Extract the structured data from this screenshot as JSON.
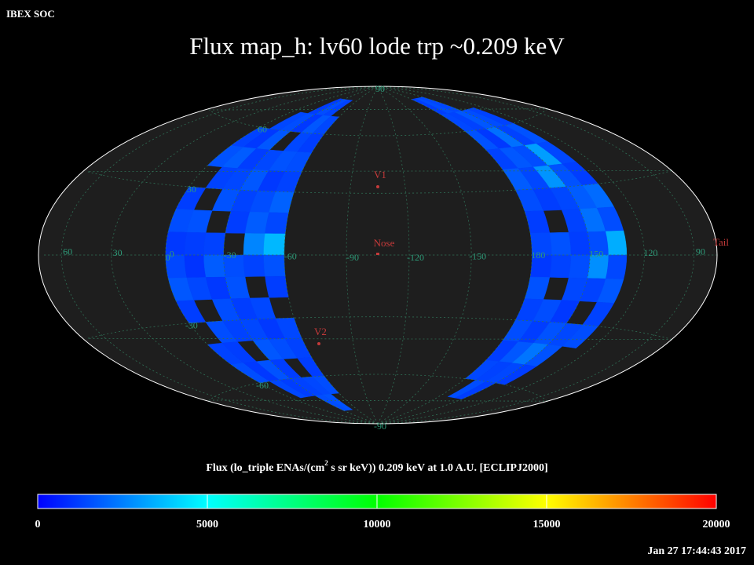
{
  "header": {
    "label": "IBEX SOC",
    "title": "Flux   map_h: lv60 lode trp ~0.209 keV",
    "timestamp": "Jan 27 17:44:43 2017"
  },
  "map": {
    "lat_labels": [
      90,
      60,
      30,
      0,
      -30,
      -60,
      -90
    ],
    "lon_labels": [
      60,
      30,
      0,
      -30,
      -60,
      -90,
      -120,
      -150,
      180,
      150,
      120,
      90
    ],
    "markers": [
      "V1",
      "Nose",
      "V2",
      "Tail"
    ],
    "flux_left": [
      [
        null,
        null,
        null,
        1300,
        1600,
        null,
        1200,
        1500,
        1100,
        1400,
        1700,
        1200,
        null,
        1300,
        1500,
        null,
        null,
        null
      ],
      [
        null,
        null,
        1400,
        1100,
        1800,
        1300,
        null,
        1600,
        1200,
        1000,
        1400,
        null,
        1500,
        1200,
        1100,
        1400,
        null,
        null
      ],
      [
        null,
        1200,
        1500,
        1700,
        1200,
        1400,
        1600,
        null,
        1300,
        1800,
        1100,
        1500,
        1300,
        null,
        1600,
        1200,
        null,
        null
      ],
      [
        null,
        1500,
        1100,
        null,
        1400,
        1700,
        1300,
        1200,
        null,
        1500,
        1600,
        1200,
        1400,
        1700,
        1200,
        1300,
        1500,
        null
      ],
      [
        null,
        1300,
        1700,
        1400,
        1600,
        1100,
        1500,
        1800,
        2600,
        1300,
        null,
        1400,
        1100,
        1500,
        null,
        1400,
        1600,
        null
      ],
      [
        null,
        null,
        1400,
        1200,
        1500,
        1300,
        1900,
        1400,
        3600,
        1600,
        1200,
        null,
        1400,
        1300,
        1200,
        1500,
        null,
        null
      ]
    ],
    "flux_right": [
      [
        null,
        1200,
        1400,
        1600,
        1300,
        1800,
        1500,
        1200,
        1400,
        1100,
        1600,
        1300,
        1500,
        1200,
        1400,
        null,
        null,
        null
      ],
      [
        null,
        1500,
        1300,
        1100,
        1700,
        1400,
        1200,
        null,
        1600,
        1300,
        null,
        1500,
        1200,
        1700,
        1300,
        1500,
        null,
        null
      ],
      [
        null,
        1400,
        1700,
        2200,
        1500,
        2900,
        1400,
        1300,
        1200,
        1500,
        1400,
        1100,
        1600,
        2300,
        1400,
        1200,
        null,
        null
      ],
      [
        null,
        null,
        1500,
        1300,
        3100,
        1600,
        1800,
        2200,
        1500,
        2800,
        1300,
        null,
        1400,
        1600,
        1200,
        null,
        null,
        null
      ],
      [
        null,
        null,
        1300,
        1600,
        1400,
        1200,
        2100,
        1500,
        3400,
        1400,
        1700,
        1300,
        1500,
        null,
        null,
        null,
        null,
        null
      ]
    ]
  },
  "colorbar": {
    "label_parts": [
      "Flux (lo_triple ENAs/(cm",
      "2",
      " s sr keV))  0.209 keV at 1.0 A.U. [ECLIPJ2000]"
    ],
    "lim": [
      0,
      20000
    ],
    "ticks": [
      0,
      5000,
      10000,
      15000,
      20000
    ]
  }
}
